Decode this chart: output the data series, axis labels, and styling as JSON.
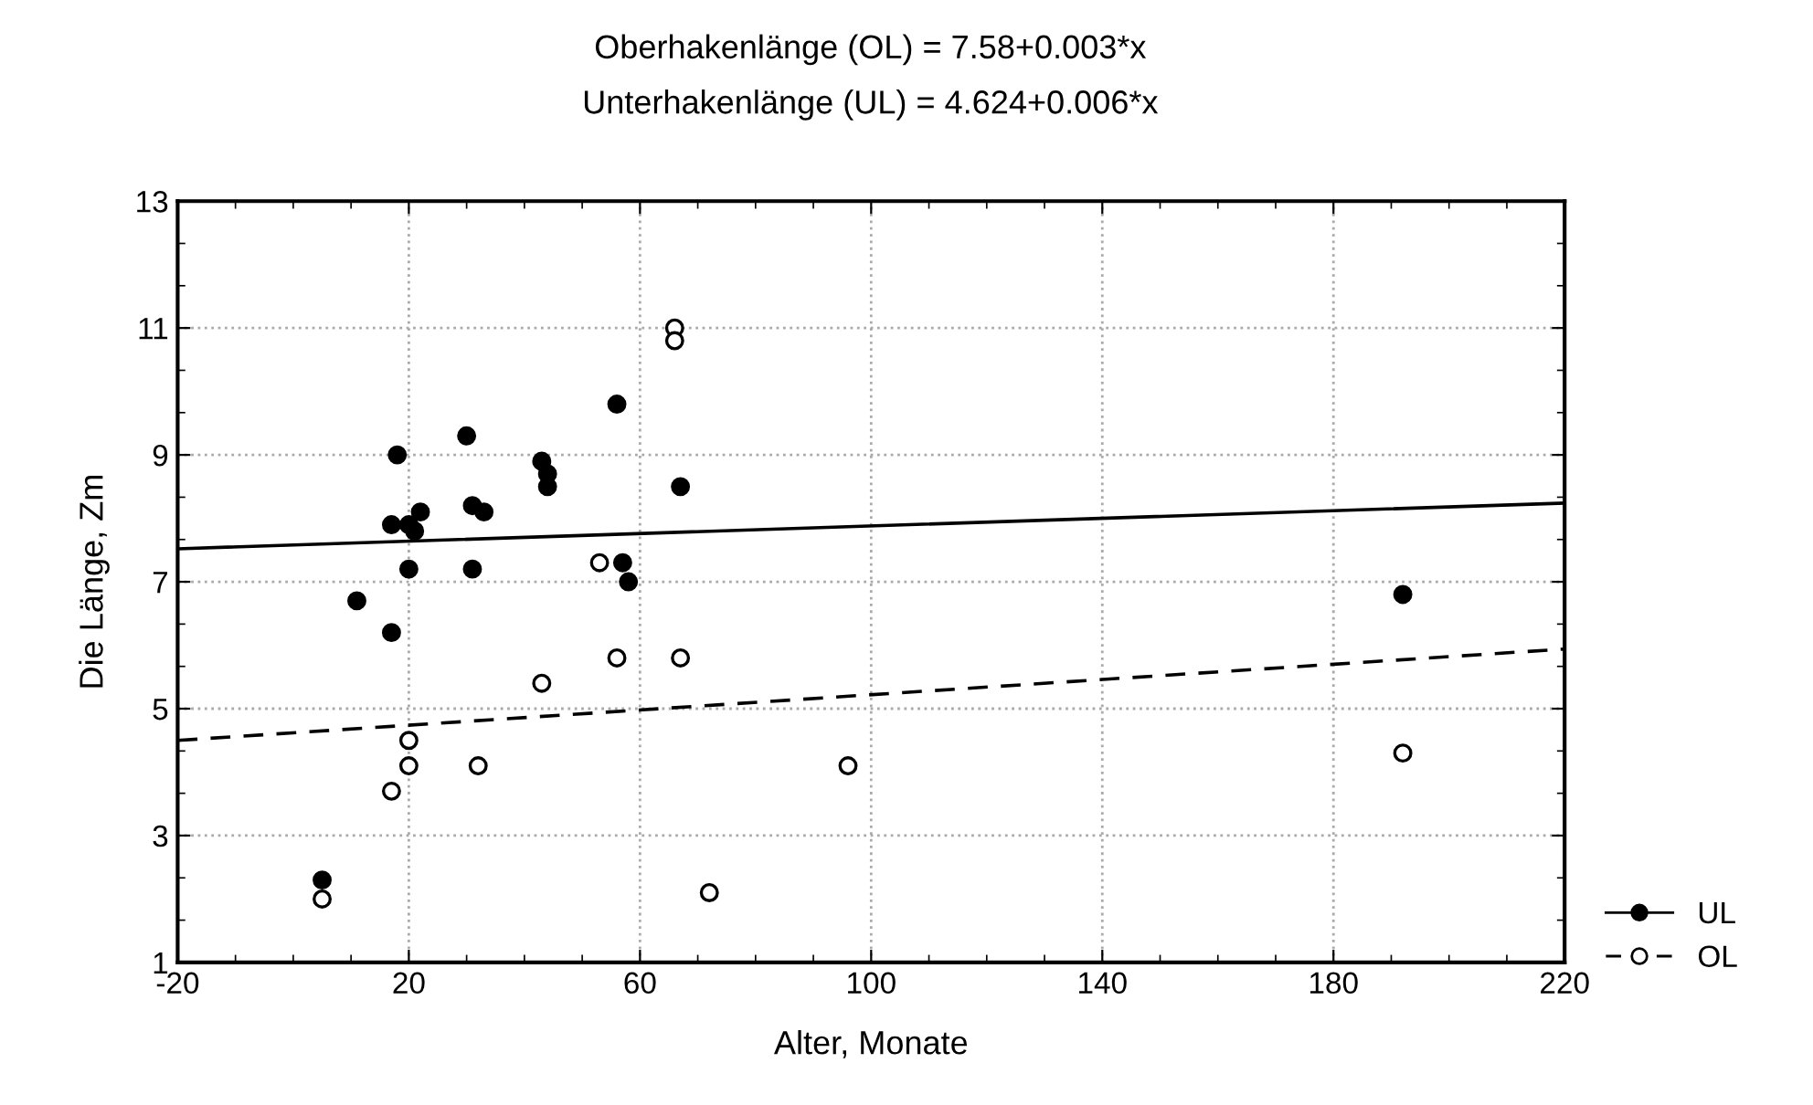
{
  "chart_data": {
    "type": "scatter",
    "title": "Oberhakenlänge (OL) = 7.58+0.003*x",
    "subtitle": "Unterhakenlänge (UL) = 4.624+0.006*x",
    "xlabel": "Alter, Monate",
    "ylabel": "Die Länge, Zm",
    "xlim": [
      -20,
      220
    ],
    "xticks": [
      -20,
      20,
      60,
      100,
      140,
      180,
      220
    ],
    "ylim": [
      1,
      13
    ],
    "yticks": [
      1,
      3,
      5,
      7,
      9,
      11,
      13
    ],
    "grid": true,
    "legend": "bottom right",
    "marker": "circle",
    "series": [
      {
        "name": "UL",
        "color": "#000000",
        "x": [
          18,
          30,
          56,
          43,
          44,
          44,
          67,
          31,
          33,
          17,
          20,
          22,
          21,
          20,
          31,
          57,
          58,
          11,
          17,
          5,
          192
        ],
        "values": [
          9.0,
          9.3,
          9.8,
          8.9,
          8.7,
          8.5,
          8.5,
          8.2,
          8.1,
          7.9,
          7.9,
          8.1,
          7.8,
          7.2,
          7.2,
          7.3,
          7.0,
          6.7,
          6.2,
          2.3,
          6.8
        ]
      },
      {
        "type": "line",
        "color": "#000000",
        "line_style": "solid",
        "marker": "none",
        "x": [
          -20,
          220
        ],
        "values": [
          7.52,
          8.24
        ]
      },
      {
        "name": "OL",
        "color": "#ffffff",
        "x": [
          66,
          66,
          53,
          56,
          67,
          43,
          20,
          20,
          32,
          17,
          96,
          72,
          5,
          192
        ],
        "values": [
          11.0,
          10.8,
          7.3,
          5.8,
          5.8,
          5.4,
          4.5,
          4.1,
          4.1,
          3.7,
          4.1,
          2.1,
          2.0,
          4.3
        ]
      },
      {
        "type": "line",
        "color": "#000000",
        "line_style": "dashed",
        "marker": "none",
        "x": [
          -20,
          220
        ],
        "values": [
          4.5,
          5.94
        ]
      }
    ]
  }
}
